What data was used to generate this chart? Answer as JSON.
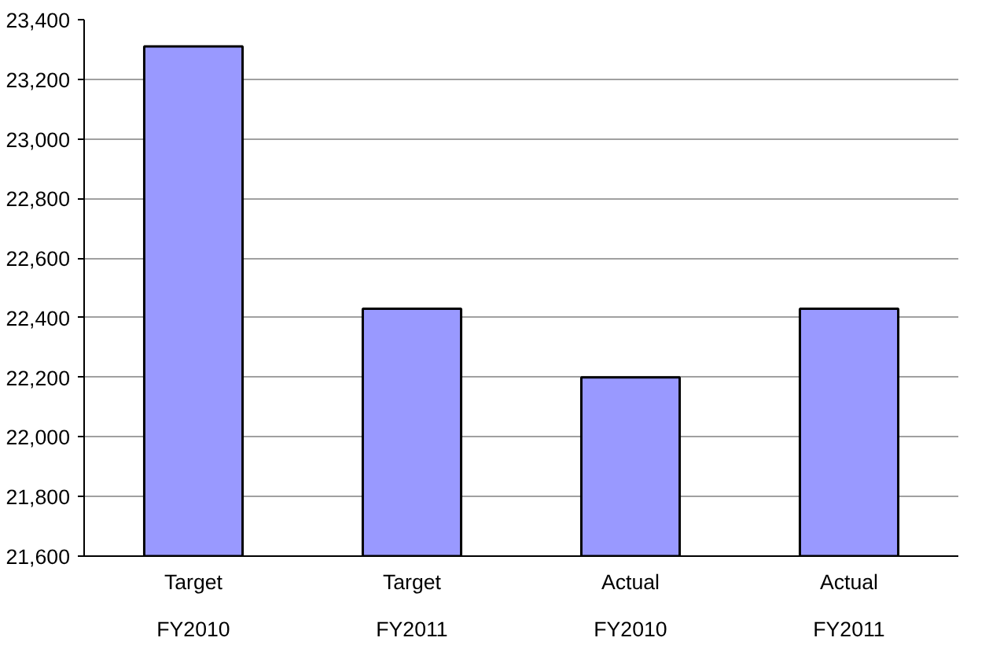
{
  "chart_data": {
    "type": "bar",
    "categories": [
      "Target\nFY2010",
      "Target\nFY2011",
      "Actual\nFY2010",
      "Actual\nFY2011"
    ],
    "values": [
      23310,
      22430,
      22200,
      22430
    ],
    "color": "#9999ff",
    "ylim": [
      21600,
      23400
    ],
    "yticks": [
      {
        "value": 21600,
        "label": "21,600"
      },
      {
        "value": 21800,
        "label": "21,800"
      },
      {
        "value": 22000,
        "label": "22,000"
      },
      {
        "value": 22200,
        "label": "22,200"
      },
      {
        "value": 22400,
        "label": "22,400"
      },
      {
        "value": 22600,
        "label": "22,600"
      },
      {
        "value": 22800,
        "label": "22,800"
      },
      {
        "value": 23000,
        "label": "23,000"
      },
      {
        "value": 23200,
        "label": "23,200"
      },
      {
        "value": 23400,
        "label": "23,400"
      }
    ],
    "grid": "y"
  }
}
